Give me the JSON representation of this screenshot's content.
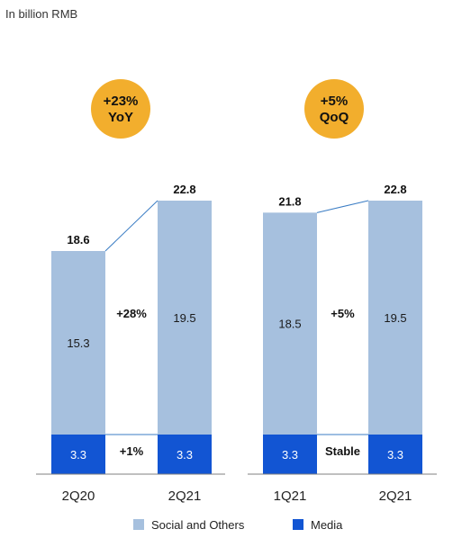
{
  "chart_data": {
    "type": "bar",
    "stacked": true,
    "unit_label": "In billion RMB",
    "colors": {
      "social": "#a6c0de",
      "media": "#1255d3",
      "badge": "#f2ae2d",
      "connector": "#3b7dc4"
    },
    "series": [
      {
        "name": "Social and Others",
        "key": "social"
      },
      {
        "name": "Media",
        "key": "media"
      }
    ],
    "groups": [
      {
        "badge": [
          "+23%",
          "YoY"
        ],
        "bars": [
          {
            "label": "2Q20",
            "social": 15.3,
            "media": 3.3,
            "total": 18.6
          },
          {
            "label": "2Q21",
            "social": 19.5,
            "media": 3.3,
            "total": 22.8
          }
        ],
        "change_social": "+28%",
        "change_media": "+1%"
      },
      {
        "badge": [
          "+5%",
          "QoQ"
        ],
        "bars": [
          {
            "label": "1Q21",
            "social": 18.5,
            "media": 3.3,
            "total": 21.8
          },
          {
            "label": "2Q21",
            "social": 19.5,
            "media": 3.3,
            "total": 22.8
          }
        ],
        "change_social": "+5%",
        "change_media": "Stable"
      }
    ],
    "value_labels": {
      "social": [
        "15.3",
        "19.5",
        "18.5",
        "19.5"
      ],
      "media": [
        "3.3",
        "3.3",
        "3.3",
        "3.3"
      ],
      "totals": [
        "18.6",
        "22.8",
        "21.8",
        "22.8"
      ]
    },
    "legend_position": "bottom",
    "grid": false
  }
}
